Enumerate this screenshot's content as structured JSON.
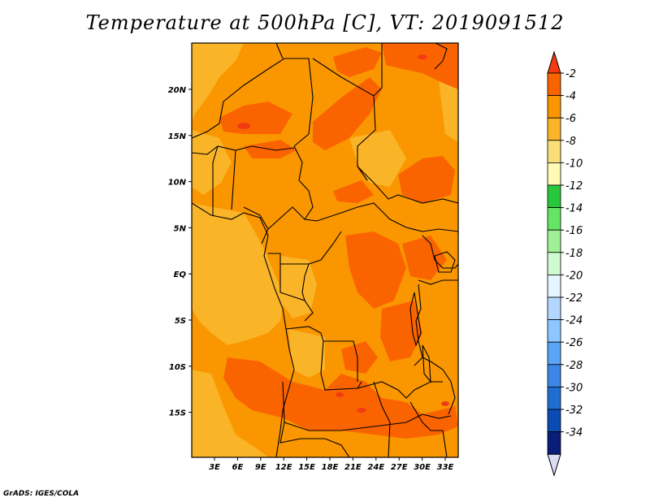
{
  "title": "Temperature at 500hPa [C], VT: 2019091512",
  "footer": "GrADS: IGES/COLA",
  "lat_labels": [
    "20N",
    "15N",
    "10N",
    "5N",
    "EQ",
    "5S",
    "10S",
    "15S"
  ],
  "lon_labels": [
    "3E",
    "6E",
    "9E",
    "12E",
    "15E",
    "18E",
    "21E",
    "24E",
    "27E",
    "30E",
    "33E"
  ],
  "colorbar": {
    "labels": [
      "-2",
      "-4",
      "-6",
      "-8",
      "-10",
      "-12",
      "-14",
      "-16",
      "-18",
      "-20",
      "-22",
      "-24",
      "-26",
      "-28",
      "-30",
      "-32",
      "-34"
    ],
    "colors": [
      "#f03c10",
      "#fa6400",
      "#fa9600",
      "#fab428",
      "#fade78",
      "#fffab4",
      "#28c83c",
      "#64e664",
      "#a0f096",
      "#d2fad2",
      "#e6f5ff",
      "#b4d7ff",
      "#8cc8ff",
      "#5aa5f5",
      "#3c87e6",
      "#1e6ed2",
      "#0a4bb4",
      "#0a1e78",
      "#dcdcf5"
    ]
  }
}
